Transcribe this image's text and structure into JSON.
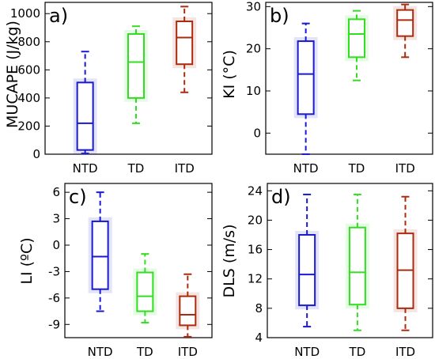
{
  "chart_data": [
    {
      "type": "box",
      "panel_label": "a)",
      "ylabel": "MUCAPE (J/kg)",
      "ylim": [
        0,
        1080
      ],
      "yticks": [
        0,
        200,
        400,
        600,
        800,
        1000
      ],
      "categories": [
        "NTD",
        "TD",
        "ITD"
      ],
      "colors": [
        "#1a1ad0",
        "#33dd22",
        "#aa2c10"
      ],
      "boxes": [
        {
          "whisker_low": 5,
          "q1": 30,
          "median": 220,
          "q3": 510,
          "whisker_high": 730
        },
        {
          "whisker_low": 220,
          "q1": 400,
          "median": 655,
          "q3": 855,
          "whisker_high": 910
        },
        {
          "whisker_low": 440,
          "q1": 640,
          "median": 830,
          "q3": 945,
          "whisker_high": 1050
        }
      ]
    },
    {
      "type": "box",
      "panel_label": "b)",
      "ylabel": "KI (°C)",
      "ylim": [
        -5,
        31
      ],
      "yticks": [
        0,
        10,
        20,
        30
      ],
      "categories": [
        "NTD",
        "TD",
        "ITD"
      ],
      "colors": [
        "#1a1ad0",
        "#33dd22",
        "#aa2c10"
      ],
      "boxes": [
        {
          "whisker_low": -5,
          "q1": 4.5,
          "median": 14,
          "q3": 21.8,
          "whisker_high": 26
        },
        {
          "whisker_low": 12.5,
          "q1": 18,
          "median": 23.5,
          "q3": 27,
          "whisker_high": 29
        },
        {
          "whisker_low": 18,
          "q1": 23,
          "median": 26.8,
          "q3": 29.2,
          "whisker_high": 30.5
        }
      ]
    },
    {
      "type": "box",
      "panel_label": "c)",
      "ylabel": "LI (ºC)",
      "ylim": [
        -10.5,
        7
      ],
      "yticks": [
        6,
        3,
        0,
        -3,
        -6,
        -9
      ],
      "categories": [
        "NTD",
        "TD",
        "ITD"
      ],
      "colors": [
        "#1a1ad0",
        "#33dd22",
        "#aa2c10"
      ],
      "boxes": [
        {
          "whisker_low": -7.5,
          "q1": -5,
          "median": -1.3,
          "q3": 2.7,
          "whisker_high": 6
        },
        {
          "whisker_low": -8.8,
          "q1": -7.5,
          "median": -5.8,
          "q3": -3.1,
          "whisker_high": -1
        },
        {
          "whisker_low": -10.4,
          "q1": -9.1,
          "median": -7.9,
          "q3": -5.8,
          "whisker_high": -3.3
        }
      ]
    },
    {
      "type": "box",
      "panel_label": "d)",
      "ylabel": "DLS (m/s)",
      "ylim": [
        4,
        25
      ],
      "yticks": [
        4,
        8,
        12,
        16,
        20,
        24
      ],
      "categories": [
        "NTD",
        "TD",
        "ITD"
      ],
      "colors": [
        "#1a1ad0",
        "#33dd22",
        "#aa2c10"
      ],
      "boxes": [
        {
          "whisker_low": 5.5,
          "q1": 8.4,
          "median": 12.6,
          "q3": 18,
          "whisker_high": 23.5
        },
        {
          "whisker_low": 5,
          "q1": 8.5,
          "median": 12.9,
          "q3": 19,
          "whisker_high": 23.5
        },
        {
          "whisker_low": 5,
          "q1": 8,
          "median": 13.2,
          "q3": 18.2,
          "whisker_high": 23.2
        }
      ]
    }
  ]
}
